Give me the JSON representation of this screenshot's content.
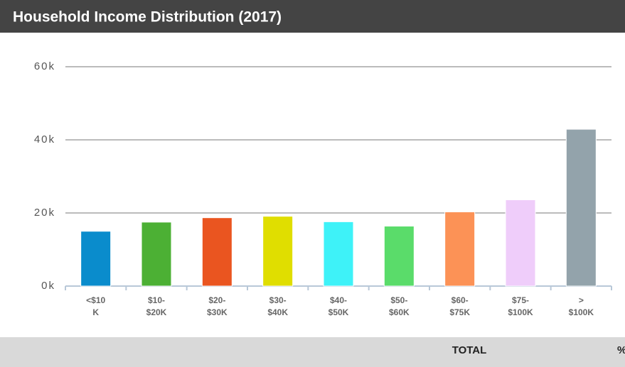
{
  "chart_data": {
    "type": "bar",
    "title": "Household Income Distribution (2017)",
    "categories": [
      [
        "<$10",
        "K"
      ],
      [
        "$10-",
        "$20K"
      ],
      [
        "$20-",
        "$30K"
      ],
      [
        "$30-",
        "$40K"
      ],
      [
        "$40-",
        "$50K"
      ],
      [
        "$50-",
        "$60K"
      ],
      [
        "$60-",
        "$75K"
      ],
      [
        "$75-",
        "$100K"
      ],
      [
        ">",
        "$100K"
      ]
    ],
    "values": [
      15000,
      17500,
      18700,
      19100,
      17600,
      16400,
      20300,
      23600,
      42900
    ],
    "colors": [
      "#0a8ccc",
      "#4cb034",
      "#ea5520",
      "#e0de00",
      "#3ef2f8",
      "#5adc6a",
      "#fc9256",
      "#efcdfa",
      "#93a3ab"
    ],
    "ylim": [
      0,
      60000
    ],
    "yticks": [
      {
        "value": 0,
        "label": "0k"
      },
      {
        "value": 20000,
        "label": "20k"
      },
      {
        "value": 40000,
        "label": "40k"
      },
      {
        "value": 60000,
        "label": "60k"
      }
    ],
    "grid": true
  },
  "footer": {
    "total": "TOTAL",
    "percent": "%"
  }
}
